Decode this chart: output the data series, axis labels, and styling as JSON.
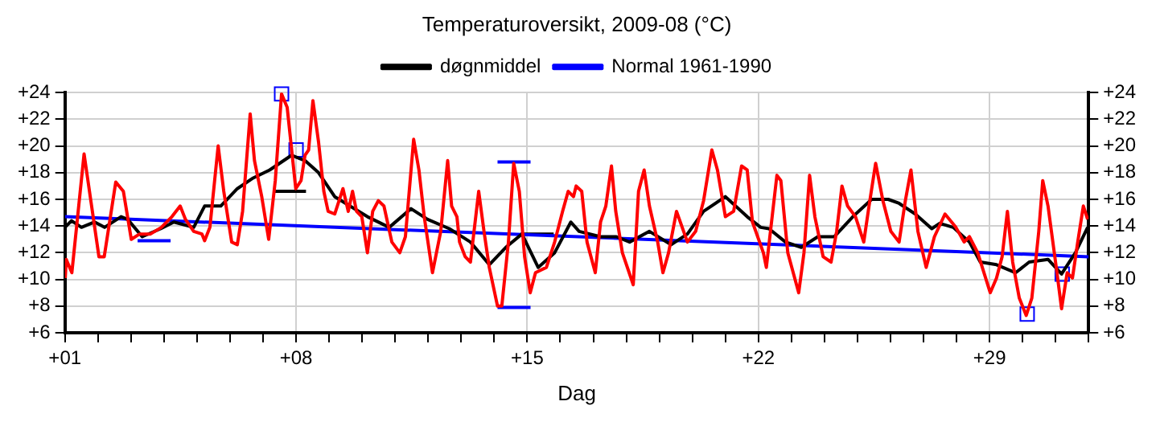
{
  "chart_data": {
    "type": "line",
    "title": "Temperaturoversikt, 2009-08 (°C)",
    "xlabel": "Dag",
    "xlim": [
      1,
      32
    ],
    "xticks": [
      {
        "value": 1,
        "label": "+01"
      },
      {
        "value": 2,
        "label": null
      },
      {
        "value": 3,
        "label": null
      },
      {
        "value": 4,
        "label": null
      },
      {
        "value": 5,
        "label": null
      },
      {
        "value": 6,
        "label": null
      },
      {
        "value": 7,
        "label": null
      },
      {
        "value": 8,
        "label": "+08"
      },
      {
        "value": 9,
        "label": null
      },
      {
        "value": 10,
        "label": null
      },
      {
        "value": 11,
        "label": null
      },
      {
        "value": 12,
        "label": null
      },
      {
        "value": 13,
        "label": null
      },
      {
        "value": 14,
        "label": null
      },
      {
        "value": 15,
        "label": "+15"
      },
      {
        "value": 16,
        "label": null
      },
      {
        "value": 17,
        "label": null
      },
      {
        "value": 18,
        "label": null
      },
      {
        "value": 19,
        "label": null
      },
      {
        "value": 20,
        "label": null
      },
      {
        "value": 21,
        "label": null
      },
      {
        "value": 22,
        "label": "+22"
      },
      {
        "value": 23,
        "label": null
      },
      {
        "value": 24,
        "label": null
      },
      {
        "value": 25,
        "label": null
      },
      {
        "value": 26,
        "label": null
      },
      {
        "value": 27,
        "label": null
      },
      {
        "value": 28,
        "label": null
      },
      {
        "value": 29,
        "label": "+29"
      },
      {
        "value": 30,
        "label": null
      },
      {
        "value": 31,
        "label": null
      },
      {
        "value": 32,
        "label": null
      }
    ],
    "ylim": [
      6,
      24
    ],
    "yticks": [
      {
        "value": 6,
        "label": "+6"
      },
      {
        "value": 8,
        "label": "+8"
      },
      {
        "value": 10,
        "label": "+10"
      },
      {
        "value": 12,
        "label": "+12"
      },
      {
        "value": 14,
        "label": "+14"
      },
      {
        "value": 16,
        "label": "+16"
      },
      {
        "value": 18,
        "label": "+18"
      },
      {
        "value": 20,
        "label": "+20"
      },
      {
        "value": 22,
        "label": "+22"
      },
      {
        "value": 24,
        "label": "+24"
      }
    ],
    "y2lim": [
      6,
      24
    ],
    "y2ticks": [
      {
        "value": 6,
        "label": "+6"
      },
      {
        "value": 8,
        "label": "+8"
      },
      {
        "value": 10,
        "label": "+10"
      },
      {
        "value": 12,
        "label": "+12"
      },
      {
        "value": 14,
        "label": "+14"
      },
      {
        "value": 16,
        "label": "+16"
      },
      {
        "value": 18,
        "label": "+18"
      },
      {
        "value": 20,
        "label": "+20"
      },
      {
        "value": 22,
        "label": "+22"
      },
      {
        "value": 24,
        "label": "+24"
      }
    ],
    "grid": true,
    "legend": "top",
    "line_style": "solid",
    "marker": "none",
    "series": [
      {
        "color": "#ff0000",
        "x": [
          1.01,
          1.04,
          1.21,
          1.58,
          2.03,
          2.19,
          2.54,
          2.77,
          3.01,
          3.26,
          3.59,
          3.92,
          4.24,
          4.49,
          4.65,
          4.9,
          5.15,
          5.23,
          5.39,
          5.64,
          5.81,
          6.05,
          6.22,
          6.38,
          6.61,
          6.74,
          6.96,
          7.17,
          7.37,
          7.56,
          7.73,
          7.99,
          8.15,
          8.27,
          8.38,
          8.51,
          8.68,
          8.84,
          8.97,
          9.17,
          9.42,
          9.58,
          9.71,
          9.83,
          9.99,
          10.16,
          10.32,
          10.49,
          10.66,
          10.9,
          11.14,
          11.31,
          11.56,
          11.72,
          11.88,
          12.13,
          12.38,
          12.59,
          12.71,
          12.87,
          12.95,
          13.12,
          13.28,
          13.53,
          13.69,
          13.85,
          14.1,
          14.23,
          14.43,
          14.59,
          14.76,
          14.92,
          15.09,
          15.25,
          15.58,
          15.83,
          16.07,
          16.24,
          16.4,
          16.48,
          16.65,
          16.81,
          17.06,
          17.22,
          17.38,
          17.55,
          17.68,
          17.88,
          18.21,
          18.37,
          18.54,
          18.7,
          18.95,
          19.11,
          19.28,
          19.52,
          19.85,
          20.1,
          20.34,
          20.59,
          20.76,
          21,
          21.25,
          21.49,
          21.66,
          21.82,
          22.15,
          22.24,
          22.56,
          22.68,
          22.89,
          23.22,
          23.38,
          23.55,
          23.71,
          23.96,
          24.2,
          24.37,
          24.53,
          24.7,
          24.94,
          25.19,
          25.35,
          25.55,
          25.77,
          26.01,
          26.26,
          26.45,
          26.62,
          26.83,
          27.08,
          27.33,
          27.65,
          27.98,
          28.23,
          28.39,
          28.64,
          29.02,
          29.21,
          29.38,
          29.54,
          29.7,
          29.9,
          30.11,
          30.28,
          30.49,
          30.61,
          30.77,
          31.02,
          31.18,
          31.35,
          31.51,
          31.67,
          31.84,
          31.97
        ],
        "values": [
          10.1,
          11.5,
          10.5,
          19.4,
          11.7,
          11.7,
          17.3,
          16.6,
          13.0,
          13.4,
          13.4,
          13.9,
          14.7,
          15.5,
          14.5,
          13.6,
          13.4,
          12.9,
          13.9,
          20.0,
          16.6,
          12.8,
          12.6,
          15.1,
          22.4,
          18.9,
          16.2,
          13.0,
          17.4,
          23.9,
          22.9,
          16.8,
          17.4,
          19.3,
          19.7,
          23.4,
          20.3,
          16.6,
          15.1,
          14.9,
          16.8,
          15.1,
          16.6,
          15.1,
          14.7,
          12.0,
          15.1,
          15.9,
          15.5,
          12.8,
          12.0,
          13.2,
          20.5,
          18.2,
          14.7,
          10.5,
          13.6,
          18.9,
          15.5,
          14.7,
          12.8,
          11.7,
          11.3,
          16.6,
          13.6,
          10.9,
          8.0,
          8.0,
          12.8,
          18.7,
          16.6,
          11.7,
          9.0,
          10.5,
          10.9,
          12.8,
          15.1,
          16.6,
          16.2,
          17.0,
          16.6,
          12.8,
          10.5,
          14.3,
          15.5,
          18.5,
          15.1,
          12.0,
          9.6,
          16.6,
          18.2,
          15.5,
          12.8,
          10.5,
          12.0,
          15.1,
          12.8,
          13.6,
          15.9,
          19.7,
          18.2,
          14.7,
          15.1,
          18.5,
          18.2,
          14.3,
          12.0,
          10.9,
          17.8,
          17.4,
          12.0,
          9.0,
          12.0,
          17.8,
          14.7,
          11.7,
          11.3,
          13.6,
          17.0,
          15.5,
          14.7,
          12.8,
          15.5,
          18.7,
          15.9,
          13.6,
          12.8,
          15.9,
          18.2,
          13.6,
          10.9,
          13.2,
          14.9,
          13.9,
          12.8,
          13.2,
          12.0,
          9.0,
          10.1,
          11.7,
          15.1,
          11.3,
          8.6,
          7.3,
          8.6,
          13.6,
          17.4,
          15.5,
          10.9,
          7.8,
          10.5,
          10.1,
          12.8,
          15.5,
          14.5
        ]
      },
      {
        "name": "døgnmiddel",
        "color": "#000000",
        "x": [
          1.0,
          1.2,
          1.5,
          1.9,
          2.2,
          2.7,
          2.9,
          3.34,
          3.9,
          4.3,
          4.9,
          5.23,
          5.72,
          6.22,
          6.7,
          7.2,
          7.86,
          8.27,
          8.68,
          9.17,
          9.5,
          10.16,
          10.82,
          11.48,
          11.98,
          12.64,
          13.28,
          13.85,
          14.35,
          14.84,
          15.33,
          15.83,
          16.32,
          16.57,
          17.22,
          17.7,
          18.1,
          18.7,
          19.36,
          19.85,
          20.34,
          21.0,
          21.66,
          22.07,
          22.32,
          22.82,
          23.3,
          23.8,
          24.3,
          24.86,
          25.43,
          25.93,
          26.26,
          26.75,
          27.25,
          27.49,
          27.9,
          28.39,
          28.72,
          29.21,
          29.79,
          30.2,
          30.77,
          31.18,
          31.6,
          31.97
        ],
        "values": [
          13.9,
          14.4,
          13.9,
          14.3,
          13.9,
          14.7,
          14.5,
          13.2,
          13.8,
          14.3,
          13.9,
          15.5,
          15.5,
          16.8,
          17.6,
          18.2,
          19.3,
          18.9,
          18.0,
          16.2,
          15.7,
          14.7,
          13.9,
          15.3,
          14.5,
          13.8,
          12.8,
          11.1,
          12.4,
          13.4,
          10.9,
          12.0,
          14.3,
          13.6,
          13.2,
          13.2,
          12.8,
          13.6,
          12.6,
          13.4,
          15.1,
          16.2,
          14.7,
          13.9,
          13.8,
          12.8,
          12.4,
          13.2,
          13.2,
          14.7,
          16.0,
          16.0,
          15.7,
          14.9,
          13.8,
          14.2,
          13.9,
          12.8,
          11.3,
          11.1,
          10.5,
          11.3,
          11.5,
          10.4,
          12.0,
          13.9
        ]
      },
      {
        "name": "Normal 1961-1990",
        "color": "#0000ff",
        "x": [
          1,
          32
        ],
        "values": [
          14.7,
          11.7
        ]
      },
      {
        "type": "scatter",
        "marker": "square",
        "color": "#0000ff",
        "x": [
          7.56,
          8.0,
          30.14,
          31.2
        ],
        "values": [
          23.9,
          19.7,
          7.4,
          10.4
        ]
      },
      {
        "color": "#0000ff",
        "x": [
          3.2,
          4.2
        ],
        "values": [
          12.9,
          12.9
        ]
      },
      {
        "color": "#000000",
        "x": [
          7.3,
          8.3
        ],
        "values": [
          16.6,
          16.6
        ]
      },
      {
        "color": "#000000",
        "x": [
          14.8,
          15.8
        ],
        "values": [
          13.4,
          13.4
        ]
      },
      {
        "color": "#0000ff",
        "x": [
          14.1,
          15.1
        ],
        "values": [
          18.8,
          18.8
        ]
      },
      {
        "color": "#0000ff",
        "x": [
          14.1,
          15.1
        ],
        "values": [
          7.9,
          7.9
        ]
      }
    ]
  }
}
